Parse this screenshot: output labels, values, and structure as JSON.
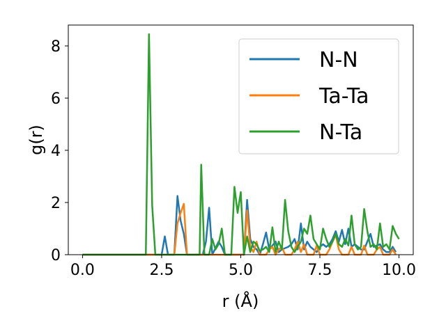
{
  "chart_data": {
    "type": "line",
    "xlabel": "r (Å)",
    "ylabel": "g(r)",
    "xlim": [
      -0.45,
      10.45
    ],
    "ylim": [
      0,
      8.8
    ],
    "xticks": [
      0.0,
      2.5,
      5.0,
      7.5,
      10.0
    ],
    "xtick_labels": [
      "0.0",
      "2.5",
      "5.0",
      "7.5",
      "10.0"
    ],
    "yticks": [
      0,
      2,
      4,
      6,
      8
    ],
    "ytick_labels": [
      "0",
      "2",
      "4",
      "6",
      "8"
    ],
    "grid": false,
    "legend_position": "upper right",
    "series": [
      {
        "name": "N-N",
        "color": "#1f77b4",
        "points": [
          [
            0.0,
            0
          ],
          [
            2.5,
            0
          ],
          [
            2.6,
            0.7
          ],
          [
            2.7,
            0
          ],
          [
            2.9,
            0
          ],
          [
            3.0,
            2.25
          ],
          [
            3.1,
            1.3
          ],
          [
            3.2,
            0.8
          ],
          [
            3.3,
            0
          ],
          [
            3.8,
            0
          ],
          [
            3.9,
            0.5
          ],
          [
            4.0,
            1.8
          ],
          [
            4.1,
            0
          ],
          [
            4.3,
            0.5
          ],
          [
            4.4,
            0.3
          ],
          [
            4.5,
            0
          ],
          [
            5.1,
            0
          ],
          [
            5.2,
            2.1
          ],
          [
            5.3,
            0.6
          ],
          [
            5.4,
            0.3
          ],
          [
            5.5,
            0.2
          ],
          [
            5.6,
            0
          ],
          [
            5.7,
            0.4
          ],
          [
            5.8,
            0.85
          ],
          [
            5.9,
            0.2
          ],
          [
            6.0,
            0.35
          ],
          [
            6.1,
            0.5
          ],
          [
            6.2,
            0.1
          ],
          [
            6.3,
            0.2
          ],
          [
            6.5,
            0.3
          ],
          [
            6.6,
            0.4
          ],
          [
            6.7,
            0.6
          ],
          [
            6.8,
            0.2
          ],
          [
            6.9,
            1.2
          ],
          [
            7.0,
            0.2
          ],
          [
            7.1,
            0.5
          ],
          [
            7.2,
            0.3
          ],
          [
            7.3,
            0.2
          ],
          [
            7.4,
            0.1
          ],
          [
            7.5,
            0.3
          ],
          [
            7.6,
            0.4
          ],
          [
            7.7,
            0.3
          ],
          [
            7.8,
            0.4
          ],
          [
            7.9,
            0.6
          ],
          [
            8.0,
            0.9
          ],
          [
            8.1,
            0.5
          ],
          [
            8.2,
            0.95
          ],
          [
            8.3,
            0.4
          ],
          [
            8.4,
            1.0
          ],
          [
            8.5,
            0.3
          ],
          [
            8.6,
            0.4
          ],
          [
            8.7,
            0.3
          ],
          [
            8.8,
            0.2
          ],
          [
            8.9,
            0.2
          ],
          [
            9.0,
            0.5
          ],
          [
            9.1,
            0.8
          ],
          [
            9.2,
            0.3
          ],
          [
            9.3,
            0.35
          ],
          [
            9.4,
            0.4
          ],
          [
            9.5,
            0.2
          ],
          [
            9.6,
            0.1
          ],
          [
            9.7,
            0.1
          ],
          [
            9.8,
            0.3
          ],
          [
            9.9,
            0.1
          ]
        ]
      },
      {
        "name": "Ta-Ta",
        "color": "#ff7f0e",
        "points": [
          [
            0.0,
            0
          ],
          [
            2.9,
            0
          ],
          [
            3.0,
            1.2
          ],
          [
            3.1,
            1.6
          ],
          [
            3.2,
            1.95
          ],
          [
            3.3,
            0
          ],
          [
            5.1,
            0
          ],
          [
            5.2,
            1.7
          ],
          [
            5.3,
            0.3
          ],
          [
            5.4,
            0.1
          ],
          [
            5.5,
            0.5
          ],
          [
            5.6,
            0
          ],
          [
            5.8,
            0
          ],
          [
            5.9,
            0.2
          ],
          [
            6.0,
            0.3
          ],
          [
            6.1,
            0
          ],
          [
            6.2,
            0.2
          ],
          [
            6.3,
            0.3
          ],
          [
            6.4,
            0
          ],
          [
            6.6,
            0
          ],
          [
            6.7,
            0.2
          ],
          [
            6.8,
            0.5
          ],
          [
            6.9,
            0.1
          ],
          [
            7.0,
            0.4
          ],
          [
            7.1,
            0
          ],
          [
            7.3,
            0
          ],
          [
            7.4,
            0.35
          ],
          [
            7.5,
            0
          ],
          [
            7.7,
            0
          ],
          [
            7.8,
            0.2
          ],
          [
            7.9,
            0.5
          ],
          [
            8.0,
            0.75
          ],
          [
            8.1,
            0.2
          ],
          [
            8.2,
            0
          ],
          [
            8.4,
            0
          ],
          [
            8.5,
            0.3
          ],
          [
            8.6,
            0
          ],
          [
            8.8,
            0
          ],
          [
            8.9,
            0.35
          ],
          [
            9.0,
            0
          ],
          [
            9.2,
            0
          ],
          [
            9.3,
            0.2
          ],
          [
            9.4,
            0.3
          ],
          [
            9.5,
            0
          ],
          [
            9.7,
            0
          ],
          [
            9.8,
            0.2
          ],
          [
            9.9,
            0
          ]
        ]
      },
      {
        "name": "N-Ta",
        "color": "#2ca02c",
        "points": [
          [
            0.0,
            0
          ],
          [
            2.0,
            0
          ],
          [
            2.1,
            8.45
          ],
          [
            2.2,
            1.9
          ],
          [
            2.3,
            0
          ],
          [
            3.7,
            0
          ],
          [
            3.75,
            3.45
          ],
          [
            3.85,
            0
          ],
          [
            4.0,
            0
          ],
          [
            4.1,
            0.6
          ],
          [
            4.2,
            0.2
          ],
          [
            4.3,
            0.4
          ],
          [
            4.4,
            1.0
          ],
          [
            4.5,
            0
          ],
          [
            4.7,
            0
          ],
          [
            4.8,
            2.6
          ],
          [
            4.9,
            1.6
          ],
          [
            5.0,
            2.4
          ],
          [
            5.1,
            0
          ],
          [
            5.2,
            0.7
          ],
          [
            5.3,
            0.1
          ],
          [
            5.4,
            0.5
          ],
          [
            5.5,
            0.4
          ],
          [
            5.6,
            0.15
          ],
          [
            5.7,
            0.2
          ],
          [
            5.8,
            0.3
          ],
          [
            5.9,
            0.1
          ],
          [
            6.0,
            1.05
          ],
          [
            6.1,
            0.1
          ],
          [
            6.2,
            0.5
          ],
          [
            6.3,
            0.2
          ],
          [
            6.4,
            2.1
          ],
          [
            6.5,
            0.9
          ],
          [
            6.6,
            0.3
          ],
          [
            6.7,
            0.1
          ],
          [
            6.8,
            0.3
          ],
          [
            6.9,
            0.5
          ],
          [
            7.0,
            1.0
          ],
          [
            7.1,
            0.8
          ],
          [
            7.2,
            1.5
          ],
          [
            7.3,
            0.6
          ],
          [
            7.4,
            0.4
          ],
          [
            7.5,
            0.2
          ],
          [
            7.6,
            1.0
          ],
          [
            7.7,
            0.6
          ],
          [
            7.8,
            0.3
          ],
          [
            7.9,
            0.5
          ],
          [
            8.0,
            0.8
          ],
          [
            8.1,
            0.4
          ],
          [
            8.2,
            0.3
          ],
          [
            8.3,
            0.6
          ],
          [
            8.4,
            0.35
          ],
          [
            8.5,
            1.5
          ],
          [
            8.6,
            0.4
          ],
          [
            8.7,
            0.2
          ],
          [
            8.8,
            0.3
          ],
          [
            8.9,
            1.75
          ],
          [
            9.0,
            0.9
          ],
          [
            9.1,
            0.3
          ],
          [
            9.2,
            0.4
          ],
          [
            9.3,
            0.2
          ],
          [
            9.4,
            1.2
          ],
          [
            9.5,
            0.3
          ],
          [
            9.6,
            0.4
          ],
          [
            9.7,
            0.2
          ],
          [
            9.8,
            1.1
          ],
          [
            9.9,
            0.8
          ],
          [
            10.0,
            0.6
          ]
        ]
      }
    ]
  }
}
